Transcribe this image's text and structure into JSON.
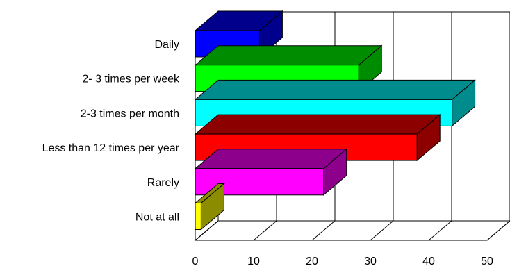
{
  "chart_data": {
    "type": "bar",
    "orientation": "horizontal",
    "style": "3d",
    "categories": [
      "Daily",
      "2- 3 times per week",
      "2-3 times per month",
      "Less than 12 times per year",
      "Rarely",
      "Not at all"
    ],
    "values": [
      11,
      28,
      44,
      38,
      22,
      1
    ],
    "colors": [
      "#0000ff",
      "#00ff00",
      "#00ffff",
      "#ff0000",
      "#ff00ff",
      "#ffff00"
    ],
    "xticks": [
      "0",
      "10",
      "20",
      "30",
      "40",
      "50"
    ],
    "xlim": [
      0,
      50
    ],
    "grid": true,
    "legend": "none",
    "title": "",
    "xlabel": "",
    "ylabel": ""
  }
}
